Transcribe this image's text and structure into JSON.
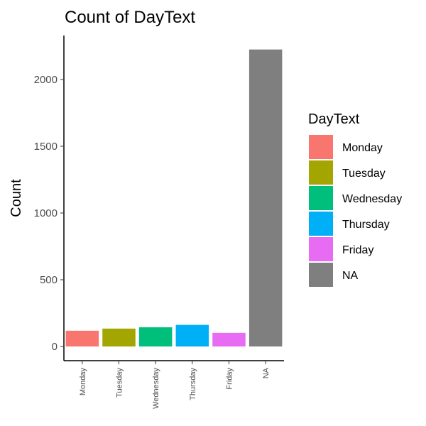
{
  "chart_data": {
    "type": "bar",
    "title": "Count of DayText",
    "xlabel": "",
    "ylabel": "Count",
    "categories": [
      "Monday",
      "Tuesday",
      "Wednesday",
      "Thursday",
      "Friday",
      "NA"
    ],
    "values": [
      118,
      134,
      144,
      162,
      102,
      2225
    ],
    "colors": [
      "#F8766D",
      "#A3A500",
      "#00BF7D",
      "#00B0F6",
      "#E76BF3",
      "#7F7F7F"
    ],
    "ylim": [
      0,
      2300
    ],
    "yticks": [
      0,
      500,
      1000,
      1500,
      2000
    ],
    "ytick_labels": [
      "0",
      "500",
      "1000",
      "1500",
      "2000"
    ],
    "grid": false,
    "legend": {
      "title": "DayText",
      "position": "right",
      "entries": [
        "Monday",
        "Tuesday",
        "Wednesday",
        "Thursday",
        "Friday",
        "NA"
      ]
    }
  }
}
